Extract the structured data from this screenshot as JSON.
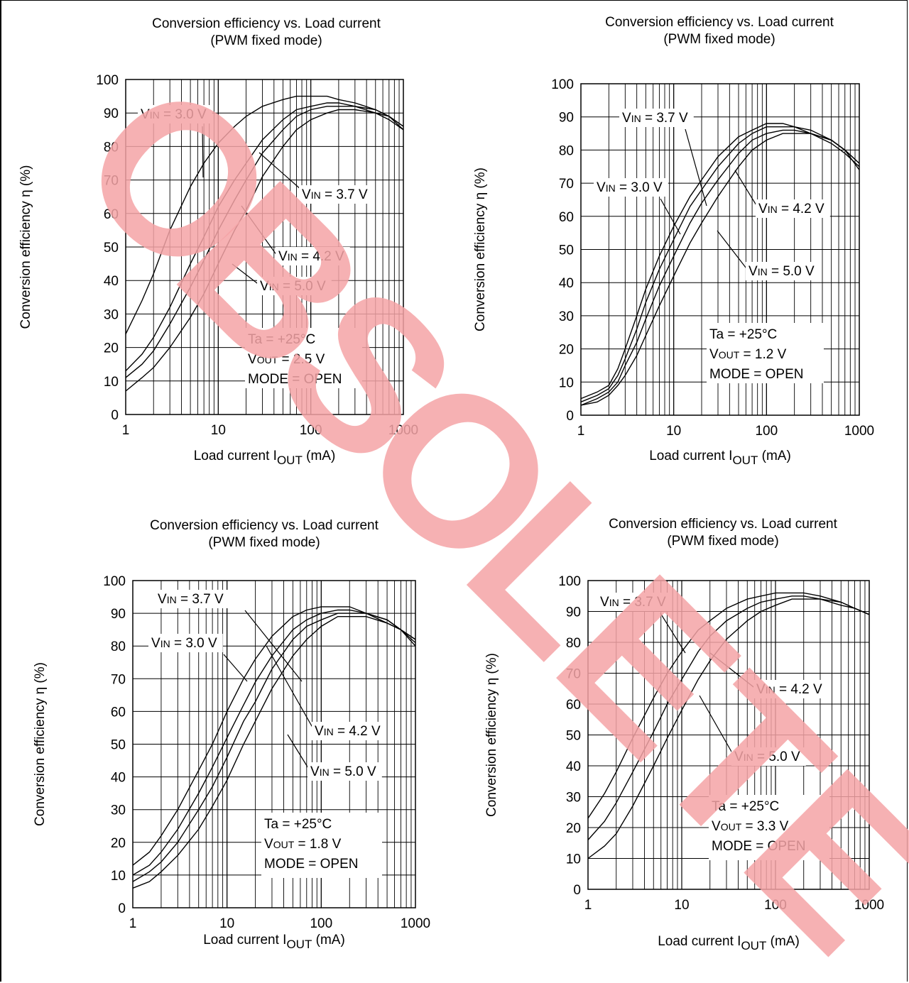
{
  "watermark": {
    "text": "OBSOLETE",
    "color": "#f4a3a6"
  },
  "chart_data": [
    {
      "type": "line",
      "title": "Conversion efficiency vs. Load current",
      "subtitle": "(PWM fixed mode)",
      "xlabel": "Load current I",
      "xlabel_sub": "OUT",
      "xlabel_unit": " (mA)",
      "ylabel": "Conversion efficiency  η  (%)",
      "xscale": "log",
      "xlim": [
        1,
        1000
      ],
      "ylim": [
        0,
        100
      ],
      "grid": true,
      "xticks": [
        "1",
        "10",
        "100",
        "1000"
      ],
      "yticks": [
        "0",
        "10",
        "20",
        "30",
        "40",
        "50",
        "60",
        "70",
        "80",
        "90",
        "100"
      ],
      "conditions": [
        "Ta = +25°C",
        "VOUT = 2.5 V",
        "MODE = OPEN"
      ],
      "series": [
        {
          "name": "VIN = 3.0 V",
          "x": [
            1,
            1.5,
            2,
            3,
            5,
            7,
            10,
            15,
            20,
            30,
            50,
            70,
            100,
            150,
            200,
            300,
            500,
            700,
            1000
          ],
          "y": [
            24,
            34,
            42,
            55,
            68,
            75,
            81,
            86,
            89,
            92,
            94,
            95,
            95,
            95,
            94,
            93,
            91,
            89,
            85
          ]
        },
        {
          "name": "VIN = 3.7 V",
          "x": [
            1,
            1.5,
            2,
            3,
            5,
            7,
            10,
            15,
            20,
            30,
            50,
            70,
            100,
            150,
            200,
            300,
            500,
            700,
            1000
          ],
          "y": [
            13,
            18,
            23,
            32,
            45,
            53,
            62,
            70,
            75,
            82,
            88,
            91,
            92,
            93,
            93,
            92,
            91,
            89,
            86
          ]
        },
        {
          "name": "VIN = 4.2 V",
          "x": [
            1,
            1.5,
            2,
            3,
            5,
            7,
            10,
            15,
            20,
            30,
            50,
            70,
            100,
            150,
            200,
            300,
            500,
            700,
            1000
          ],
          "y": [
            11,
            15,
            19,
            27,
            38,
            46,
            55,
            64,
            70,
            78,
            85,
            89,
            91,
            92,
            92,
            92,
            90,
            89,
            86
          ]
        },
        {
          "name": "VIN = 5.0 V",
          "x": [
            1,
            1.5,
            2,
            3,
            5,
            7,
            10,
            15,
            20,
            30,
            50,
            70,
            100,
            150,
            200,
            300,
            500,
            700,
            1000
          ],
          "y": [
            7,
            11,
            14,
            20,
            29,
            36,
            45,
            55,
            61,
            71,
            80,
            85,
            88,
            90,
            91,
            91,
            90,
            88,
            85
          ]
        }
      ]
    },
    {
      "type": "line",
      "title": "Conversion efficiency vs. Load current",
      "subtitle": "(PWM fixed mode)",
      "xlabel": "Load current I",
      "xlabel_sub": "OUT",
      "xlabel_unit": " (mA)",
      "ylabel": "Conversion efficiency  η  (%)",
      "xscale": "log",
      "xlim": [
        1,
        1000
      ],
      "ylim": [
        0,
        100
      ],
      "grid": true,
      "xticks": [
        "1",
        "10",
        "100",
        "1000"
      ],
      "yticks": [
        "0",
        "10",
        "20",
        "30",
        "40",
        "50",
        "60",
        "70",
        "80",
        "90",
        "100"
      ],
      "conditions": [
        "Ta = +25°C",
        "VOUT = 1.2 V",
        "MODE = OPEN"
      ],
      "series": [
        {
          "name": "VIN = 3.0 V",
          "x": [
            1,
            1.5,
            2,
            2.5,
            3,
            4,
            5,
            7,
            10,
            15,
            20,
            30,
            50,
            70,
            100,
            150,
            200,
            300,
            500,
            700,
            1000
          ],
          "y": [
            5,
            7,
            9,
            14,
            20,
            30,
            38,
            48,
            57,
            66,
            71,
            78,
            84,
            86,
            88,
            88,
            87,
            85,
            82,
            79,
            75
          ]
        },
        {
          "name": "VIN = 3.7 V",
          "x": [
            1,
            1.5,
            2,
            2.5,
            3,
            4,
            5,
            7,
            10,
            15,
            20,
            30,
            50,
            70,
            100,
            150,
            200,
            300,
            500,
            700,
            1000
          ],
          "y": [
            4,
            6,
            8,
            12,
            17,
            26,
            34,
            44,
            53,
            63,
            68,
            75,
            82,
            85,
            87,
            87,
            87,
            86,
            83,
            80,
            76
          ]
        },
        {
          "name": "VIN = 4.2 V",
          "x": [
            1,
            1.5,
            2,
            2.5,
            3,
            4,
            5,
            7,
            10,
            15,
            20,
            30,
            50,
            70,
            100,
            150,
            200,
            300,
            500,
            700,
            1000
          ],
          "y": [
            3,
            5,
            7,
            10,
            15,
            22,
            29,
            39,
            48,
            58,
            64,
            71,
            79,
            83,
            85,
            86,
            86,
            85,
            83,
            80,
            76
          ]
        },
        {
          "name": "VIN = 5.0 V",
          "x": [
            1,
            1.5,
            2,
            2.5,
            3,
            4,
            5,
            7,
            10,
            15,
            20,
            30,
            50,
            70,
            100,
            150,
            200,
            300,
            500,
            700,
            1000
          ],
          "y": [
            3,
            4,
            6,
            9,
            12,
            18,
            24,
            33,
            42,
            52,
            58,
            66,
            75,
            80,
            83,
            85,
            85,
            85,
            83,
            80,
            74
          ]
        }
      ]
    },
    {
      "type": "line",
      "title": "Conversion efficiency vs. Load current",
      "subtitle": "(PWM fixed mode)",
      "xlabel": "Load current I",
      "xlabel_sub": "OUT",
      "xlabel_unit": " (mA)",
      "ylabel": "Conversion efficiency  η  (%)",
      "xscale": "log",
      "xlim": [
        1,
        1000
      ],
      "ylim": [
        0,
        100
      ],
      "grid": true,
      "xticks": [
        "1",
        "10",
        "100",
        "1000"
      ],
      "yticks": [
        "0",
        "10",
        "20",
        "30",
        "40",
        "50",
        "60",
        "70",
        "80",
        "90",
        "100"
      ],
      "conditions": [
        "Ta  =  +25°C",
        "VOUT = 1.8 V",
        "MODE = OPEN"
      ],
      "series": [
        {
          "name": "VIN = 3.0 V",
          "x": [
            1,
            1.5,
            2,
            3,
            5,
            7,
            10,
            15,
            20,
            30,
            50,
            70,
            100,
            150,
            200,
            300,
            500,
            700,
            1000
          ],
          "y": [
            13,
            17,
            22,
            30,
            42,
            50,
            60,
            70,
            76,
            83,
            89,
            91,
            92,
            92,
            92,
            90,
            87,
            85,
            81
          ]
        },
        {
          "name": "VIN = 3.7 V",
          "x": [
            1,
            1.5,
            2,
            3,
            5,
            7,
            10,
            15,
            20,
            30,
            50,
            70,
            100,
            150,
            200,
            300,
            500,
            700,
            1000
          ],
          "y": [
            10,
            13,
            17,
            24,
            35,
            43,
            52,
            62,
            69,
            77,
            85,
            88,
            90,
            91,
            91,
            90,
            88,
            85,
            82
          ]
        },
        {
          "name": "VIN = 4.2 V",
          "x": [
            1,
            1.5,
            2,
            3,
            5,
            7,
            10,
            15,
            20,
            30,
            50,
            70,
            100,
            150,
            200,
            300,
            500,
            700,
            1000
          ],
          "y": [
            8,
            11,
            14,
            20,
            30,
            37,
            46,
            57,
            63,
            73,
            82,
            86,
            88,
            90,
            90,
            90,
            88,
            85,
            82
          ]
        },
        {
          "name": "VIN = 5.0 V",
          "x": [
            1,
            1.5,
            2,
            3,
            5,
            7,
            10,
            15,
            20,
            30,
            50,
            70,
            100,
            150,
            200,
            300,
            500,
            700,
            1000
          ],
          "y": [
            6,
            8,
            11,
            16,
            24,
            31,
            39,
            50,
            57,
            67,
            77,
            82,
            86,
            89,
            89,
            89,
            87,
            85,
            80
          ]
        }
      ]
    },
    {
      "type": "line",
      "title": "Conversion efficiency vs. Load current",
      "subtitle": "(PWM fixed mode)",
      "xlabel": "Load current I",
      "xlabel_sub": "OUT",
      "xlabel_unit": " (mA)",
      "ylabel": "Conversion efficiency  η  (%)",
      "xscale": "log",
      "xlim": [
        1,
        1000
      ],
      "ylim": [
        0,
        100
      ],
      "grid": true,
      "xticks": [
        "1",
        "10",
        "100",
        "1000"
      ],
      "yticks": [
        "0",
        "10",
        "20",
        "30",
        "40",
        "50",
        "60",
        "70",
        "80",
        "90",
        "100"
      ],
      "conditions": [
        "Ta = +25°C",
        "VOUT = 3.3 V",
        "MODE = OPEN"
      ],
      "series": [
        {
          "name": "VIN = 3.7 V",
          "x": [
            1,
            1.5,
            2,
            3,
            5,
            7,
            10,
            15,
            20,
            30,
            50,
            70,
            100,
            150,
            200,
            300,
            500,
            700,
            1000
          ],
          "y": [
            23,
            31,
            38,
            49,
            62,
            70,
            77,
            84,
            87,
            91,
            94,
            95,
            96,
            96,
            96,
            95,
            93,
            91,
            89
          ]
        },
        {
          "name": "VIN = 4.2 V",
          "x": [
            1,
            1.5,
            2,
            3,
            5,
            7,
            10,
            15,
            20,
            30,
            50,
            70,
            100,
            150,
            200,
            300,
            500,
            700,
            1000
          ],
          "y": [
            16,
            22,
            28,
            38,
            51,
            60,
            68,
            77,
            82,
            87,
            91,
            93,
            94,
            95,
            95,
            94,
            93,
            91,
            89
          ]
        },
        {
          "name": "VIN = 5.0 V",
          "x": [
            1,
            1.5,
            2,
            3,
            5,
            7,
            10,
            15,
            20,
            30,
            50,
            70,
            100,
            150,
            200,
            300,
            500,
            700,
            1000
          ],
          "y": [
            10,
            14,
            18,
            27,
            40,
            49,
            58,
            68,
            74,
            81,
            87,
            90,
            92,
            94,
            94,
            94,
            92,
            91,
            89
          ]
        }
      ]
    }
  ]
}
